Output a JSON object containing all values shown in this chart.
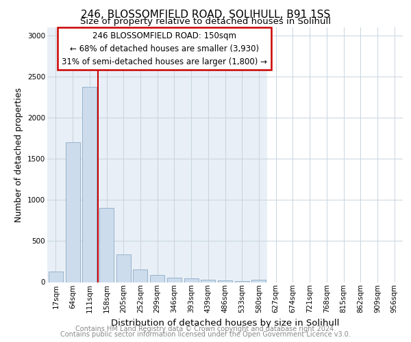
{
  "title1": "246, BLOSSOMFIELD ROAD, SOLIHULL, B91 1SS",
  "title2": "Size of property relative to detached houses in Solihull",
  "xlabel": "Distribution of detached houses by size in Solihull",
  "ylabel": "Number of detached properties",
  "footer1": "Contains HM Land Registry data © Crown copyright and database right 2024.",
  "footer2": "Contains public sector information licensed under the Open Government Licence v3.0.",
  "annotation_line1": "246 BLOSSOMFIELD ROAD: 150sqm",
  "annotation_line2": "← 68% of detached houses are smaller (3,930)",
  "annotation_line3": "31% of semi-detached houses are larger (1,800) →",
  "bar_labels": [
    "17sqm",
    "64sqm",
    "111sqm",
    "158sqm",
    "205sqm",
    "252sqm",
    "299sqm",
    "346sqm",
    "393sqm",
    "439sqm",
    "486sqm",
    "533sqm",
    "580sqm",
    "627sqm",
    "674sqm",
    "721sqm",
    "768sqm",
    "815sqm",
    "862sqm",
    "909sqm",
    "956sqm"
  ],
  "bar_values": [
    130,
    1700,
    2380,
    900,
    340,
    155,
    90,
    55,
    45,
    30,
    20,
    15,
    30,
    0,
    0,
    0,
    0,
    0,
    0,
    0,
    0
  ],
  "bar_color": "#cddcec",
  "bar_edge_color": "#8aabc8",
  "red_line_color": "#cc0000",
  "annotation_box_edge": "#cc0000",
  "ylim": [
    0,
    3100
  ],
  "yticks": [
    0,
    500,
    1000,
    1500,
    2000,
    2500,
    3000
  ],
  "active_bg_color": "#e8eff6",
  "inactive_bg_color": "#ffffff",
  "active_bar_count": 13,
  "grid_color": "#c8d4de",
  "title_fontsize": 11,
  "subtitle_fontsize": 9.5,
  "axis_label_fontsize": 9,
  "tick_fontsize": 7.5,
  "footer_fontsize": 7,
  "annotation_fontsize": 8.5
}
